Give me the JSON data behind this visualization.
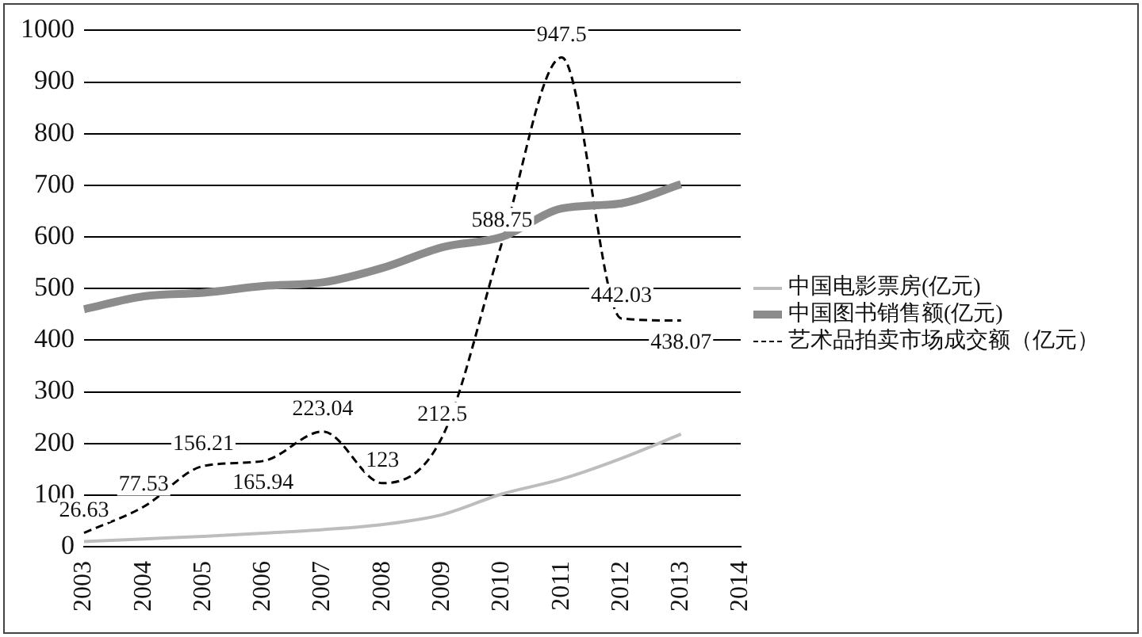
{
  "chart_data": {
    "type": "line",
    "categories": [
      "2003",
      "2004",
      "2005",
      "2006",
      "2007",
      "2008",
      "2009",
      "2010",
      "2011",
      "2012",
      "2013",
      "2014"
    ],
    "series": [
      {
        "name": "中国电影票房(亿元)",
        "color": "#bdbdbd",
        "values": [
          10,
          15,
          20,
          26,
          33,
          43,
          62,
          102,
          131,
          171,
          218,
          null
        ]
      },
      {
        "name": "中国图书销售额(亿元)",
        "color": "#8c8c8c",
        "values": [
          460,
          485,
          492,
          505,
          512,
          540,
          580,
          600,
          655,
          665,
          702,
          null
        ]
      },
      {
        "name": "艺术品拍卖市场成交额（亿元）",
        "color": "#000000",
        "line_style": "dashed",
        "values": [
          26.63,
          77.53,
          156.21,
          165.94,
          223.04,
          123,
          212.5,
          588.75,
          947.5,
          442.03,
          438.07,
          null
        ],
        "value_labels": [
          "26.63",
          "77.53",
          "156.21",
          "165.94",
          "223.04",
          "123",
          "212.5",
          "588.75",
          "947.5",
          "442.03",
          "438.07",
          null
        ]
      }
    ],
    "ylim": [
      0,
      1000
    ],
    "yticks": [
      0,
      100,
      200,
      300,
      400,
      500,
      600,
      700,
      800,
      900,
      1000
    ],
    "grid": "y",
    "legend": "right",
    "marker": "none"
  }
}
